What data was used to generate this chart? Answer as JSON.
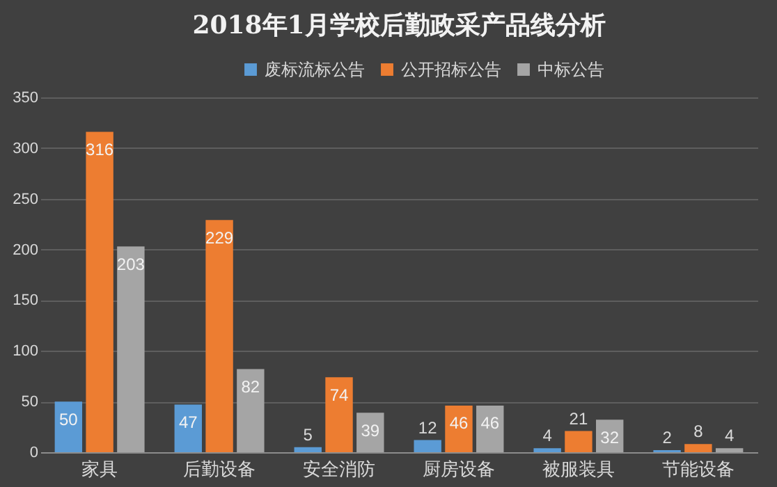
{
  "chart_data": {
    "type": "bar",
    "title": "2018年1月学校后勤政采产品线分析",
    "categories": [
      "家具",
      "后勤设备",
      "安全消防",
      "厨房设备",
      "被服装具",
      "节能设备"
    ],
    "series": [
      {
        "name": "废标流标公告",
        "color": "#5b9bd5",
        "values": [
          50,
          47,
          5,
          12,
          4,
          2
        ]
      },
      {
        "name": "公开招标公告",
        "color": "#ed7d31",
        "values": [
          316,
          229,
          74,
          46,
          21,
          8
        ]
      },
      {
        "name": "中标公告",
        "color": "#a5a5a5",
        "values": [
          203,
          82,
          39,
          46,
          32,
          4
        ]
      }
    ],
    "ylim": [
      0,
      350
    ],
    "yticks": [
      0,
      50,
      100,
      150,
      200,
      250,
      300,
      350
    ],
    "grid": "y",
    "legend": "top",
    "data_labels": true
  }
}
